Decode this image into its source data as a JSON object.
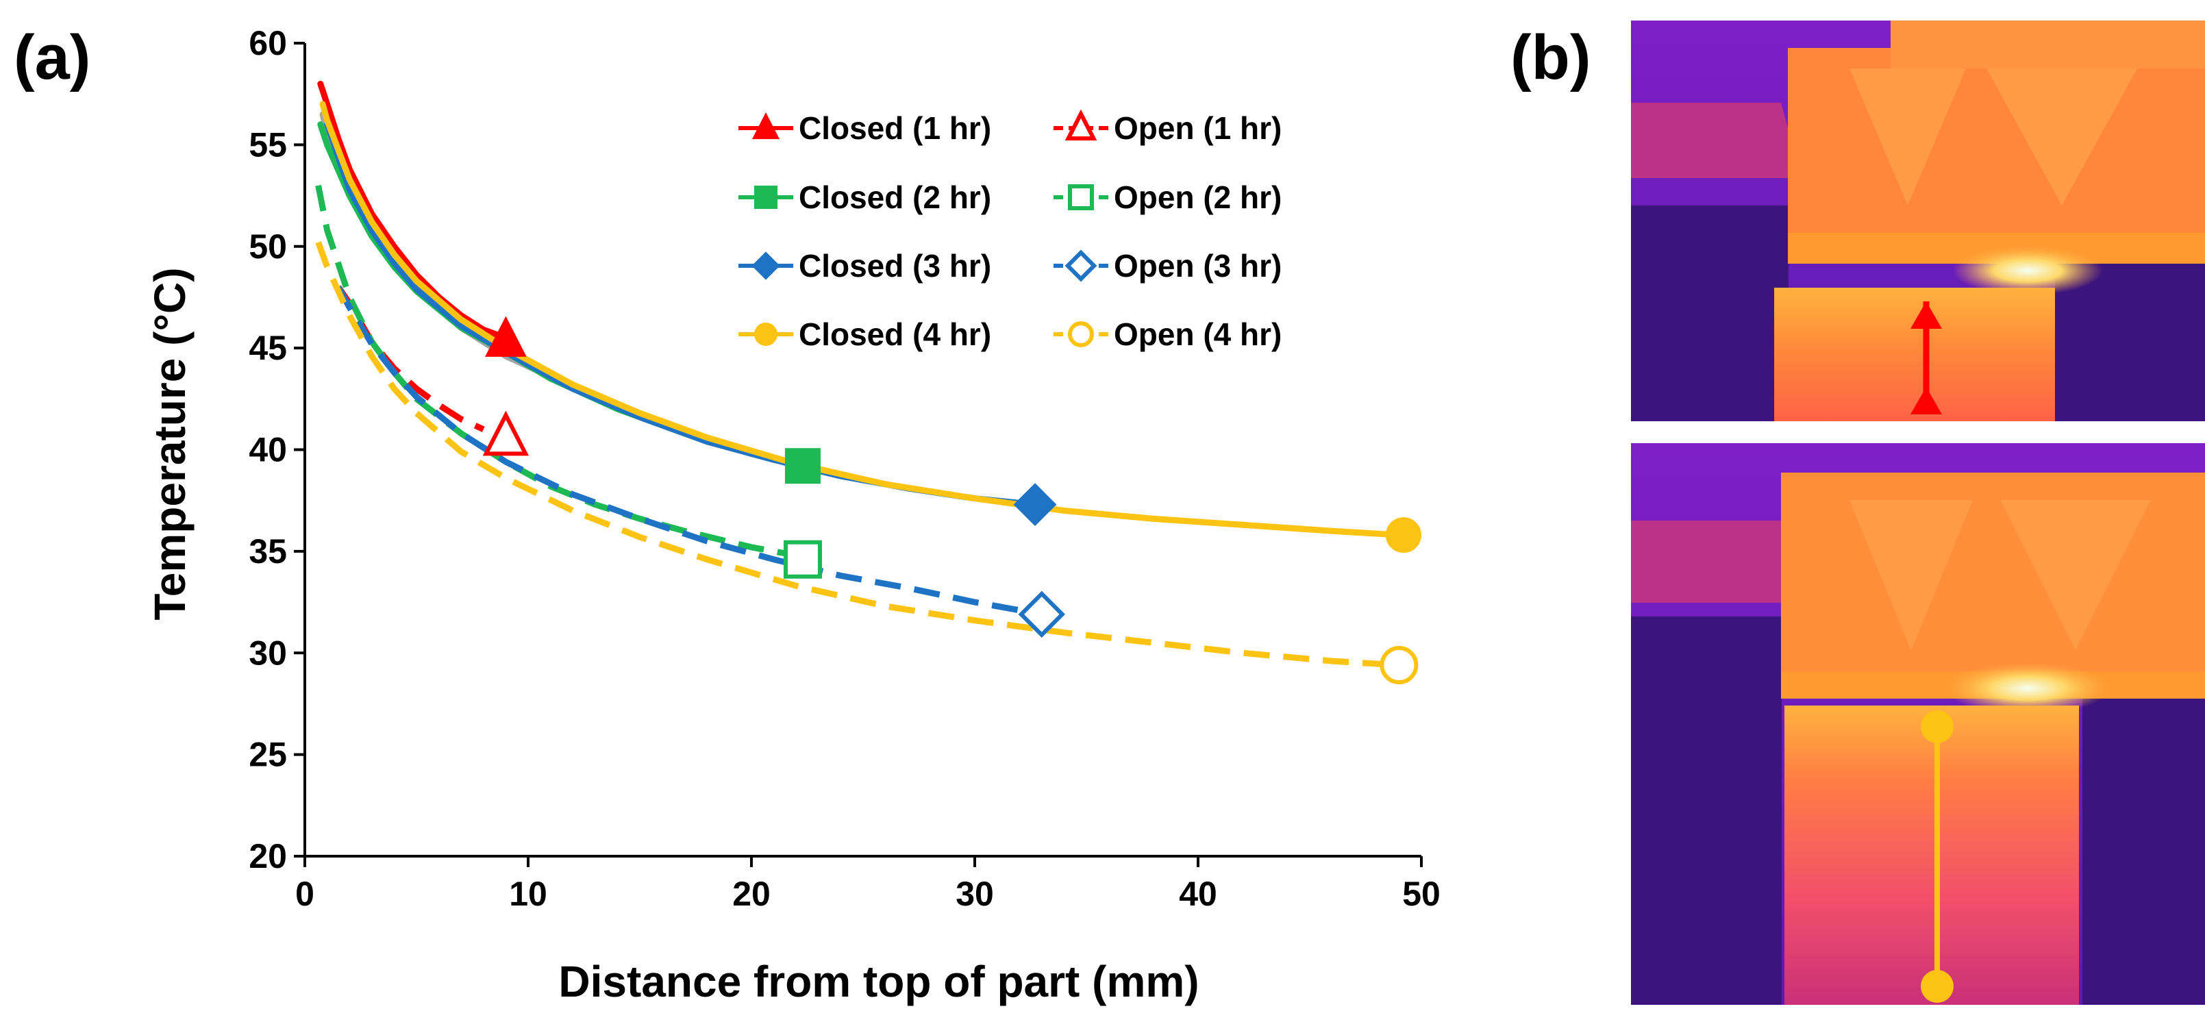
{
  "panels": {
    "a": "(a)",
    "b": "(b)"
  },
  "colors": {
    "red": "#ff0000",
    "green": "#1db954",
    "blue": "#1f73c4",
    "yellow": "#fcc312",
    "gray": "#a5a5a5"
  },
  "chart_data": {
    "type": "line",
    "xlabel": "Distance from top of part (mm)",
    "ylabel": "Temperature (°C)",
    "xlim": [
      0,
      50
    ],
    "ylim": [
      20,
      60
    ],
    "xticks": [
      0,
      10,
      20,
      30,
      40,
      50
    ],
    "yticks": [
      20,
      25,
      30,
      35,
      40,
      45,
      50,
      55,
      60
    ],
    "grid": false,
    "legend_position": "top-right",
    "series": [
      {
        "name": "Closed (1 hr)",
        "color": "#ff0000",
        "style": "solid",
        "marker": "triangle",
        "filled": true,
        "x": [
          0.7,
          1,
          1.5,
          2,
          3,
          4,
          5,
          6,
          7,
          8,
          9
        ],
        "y": [
          58.0,
          57.0,
          55.3,
          53.8,
          51.6,
          50.0,
          48.6,
          47.5,
          46.6,
          45.9,
          45.5
        ],
        "end": [
          9,
          45.4
        ]
      },
      {
        "name": "Open (1 hr)",
        "color": "#ff0000",
        "style": "dashed",
        "marker": "triangle",
        "filled": false,
        "x": [
          1.5,
          2,
          3,
          4,
          5,
          6,
          7,
          8
        ],
        "y": [
          48.0,
          47.2,
          45.3,
          44.0,
          43.0,
          42.2,
          41.5,
          41.0
        ],
        "end": [
          9,
          40.6
        ]
      },
      {
        "name": "Closed (2 hr)",
        "color": "#1db954",
        "style": "solid",
        "marker": "square",
        "filled": true,
        "x": [
          0.7,
          1,
          2,
          3,
          4,
          5,
          7,
          9,
          11,
          14,
          17,
          20,
          22.3
        ],
        "y": [
          56.0,
          55.0,
          52.5,
          50.5,
          49.0,
          47.8,
          46.0,
          44.8,
          43.5,
          42.0,
          40.8,
          39.8,
          39.2
        ],
        "end": [
          22.3,
          39.2
        ]
      },
      {
        "name": "Open (2 hr)",
        "color": "#1db954",
        "style": "dashed",
        "marker": "square",
        "filled": false,
        "x": [
          0.6,
          1,
          2,
          3,
          4,
          5,
          7,
          9,
          11,
          13,
          15,
          17,
          20,
          22
        ],
        "y": [
          53.0,
          50.8,
          47.5,
          45.3,
          43.8,
          42.5,
          40.8,
          39.4,
          38.2,
          37.3,
          36.6,
          36.0,
          35.2,
          34.8
        ],
        "end": [
          22.3,
          34.6
        ]
      },
      {
        "name": "Closed (3 hr)",
        "color": "#1f73c4",
        "style": "solid",
        "marker": "diamond",
        "filled": true,
        "x": [
          1,
          2,
          3,
          4,
          5,
          7,
          9,
          12,
          15,
          18,
          21,
          24,
          27,
          30,
          32.7
        ],
        "y": [
          56.0,
          52.8,
          50.8,
          49.2,
          47.9,
          46.1,
          44.8,
          43.0,
          41.6,
          40.4,
          39.5,
          38.7,
          38.1,
          37.6,
          37.3
        ],
        "end": [
          32.7,
          37.3
        ]
      },
      {
        "name": "Open (3 hr)",
        "color": "#1f73c4",
        "style": "dashed",
        "marker": "diamond",
        "filled": false,
        "x": [
          1.5,
          2,
          3,
          4,
          5,
          7,
          9,
          12,
          15,
          18,
          21,
          24,
          27,
          30,
          33
        ],
        "y": [
          48.0,
          47.0,
          45.2,
          43.8,
          42.6,
          40.8,
          39.4,
          37.8,
          36.6,
          35.5,
          34.6,
          33.8,
          33.2,
          32.5,
          31.9
        ],
        "end": [
          33.0,
          31.9
        ]
      },
      {
        "name": "Closed (4 hr)",
        "color": "#fcc312",
        "style": "solid",
        "marker": "circle",
        "filled": true,
        "x": [
          0.8,
          1,
          2,
          3,
          4,
          5,
          7,
          9,
          12,
          15,
          18,
          22,
          26,
          30,
          34,
          38,
          42,
          46,
          49
        ],
        "y": [
          57.0,
          56.2,
          53.3,
          51.2,
          49.6,
          48.3,
          46.4,
          45.0,
          43.2,
          41.8,
          40.6,
          39.3,
          38.3,
          37.6,
          37.0,
          36.6,
          36.3,
          36.0,
          35.8
        ],
        "end": [
          49.2,
          35.8
        ]
      },
      {
        "name": "Open (4 hr)",
        "color": "#fcc312",
        "style": "dashed",
        "marker": "circle",
        "filled": false,
        "x": [
          0.6,
          1,
          2,
          3,
          4,
          5,
          7,
          9,
          12,
          15,
          18,
          22,
          26,
          30,
          34,
          38,
          42,
          46,
          49
        ],
        "y": [
          50.2,
          49.0,
          46.6,
          44.6,
          43.0,
          41.8,
          39.9,
          38.6,
          37.0,
          35.7,
          34.6,
          33.3,
          32.3,
          31.6,
          31.0,
          30.5,
          30.0,
          29.6,
          29.4
        ],
        "end": [
          49.0,
          29.4
        ]
      },
      {
        "name": "",
        "color": "#a5a5a5",
        "style": "solid",
        "marker": "none",
        "filled": false,
        "legend": false,
        "x": [
          0.8,
          1,
          2,
          3,
          4,
          5,
          7,
          9,
          11
        ],
        "y": [
          56.5,
          55.5,
          52.6,
          50.6,
          49.1,
          47.9,
          46.0,
          44.6,
          43.6
        ]
      }
    ]
  },
  "thermal_images": {
    "top_marker": {
      "shape": "triangle",
      "color": "#ff0000"
    },
    "bottom_marker": {
      "shape": "circle",
      "color": "#fcc312"
    }
  }
}
